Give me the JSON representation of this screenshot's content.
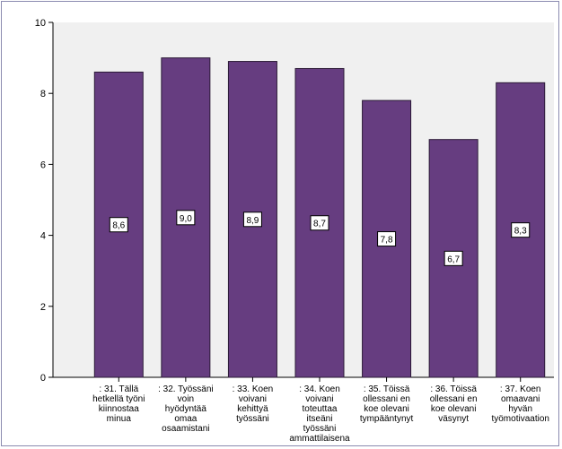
{
  "chart_data": {
    "type": "bar",
    "categories": [
      ": 31. Tällä hetkellä työni kiinnostaa minua",
      ": 32. Työssäni voin hyödyntää omaa osaamistani",
      ": 33. Koen voivani kehittyä työssäni",
      ": 34. Koen voivani toteuttaa itseäni työssäni ammattilaisena",
      ": 35. Töissä ollessani en koe olevani tympääntynyt",
      ": 36. Töissä ollessani en koe olevani väsynyt",
      ": 37. Koen omaavani hyvän työmotivaation"
    ],
    "category_lines": [
      [
        ": 31. Tällä",
        "hetkellä työni",
        "kiinnostaa",
        "minua"
      ],
      [
        ": 32. Työssäni",
        "voin",
        "hyödyntää",
        "omaa",
        "osaamistani"
      ],
      [
        ": 33. Koen",
        "voivani",
        "kehittyä",
        "työssäni"
      ],
      [
        ": 34. Koen",
        "voivani",
        "toteuttaa",
        "itseäni",
        "työssäni",
        "ammattilaisena"
      ],
      [
        ": 35. Töissä",
        "ollessani en",
        "koe olevani",
        "tympääntynyt"
      ],
      [
        ": 36. Töissä",
        "ollessani en",
        "koe olevani",
        "väsynyt"
      ],
      [
        ": 37. Koen",
        "omaavani",
        "hyvän",
        "työmotivaation"
      ]
    ],
    "values": [
      8.6,
      9.0,
      8.9,
      8.7,
      7.8,
      6.7,
      8.3
    ],
    "data_labels": [
      "8,6",
      "9,0",
      "8,9",
      "8,7",
      "7,8",
      "6,7",
      "8,3"
    ],
    "ylim": [
      0,
      10
    ],
    "yticks": [
      0,
      2,
      4,
      6,
      8,
      10
    ],
    "ytick_labels": [
      "0",
      "2",
      "4",
      "6",
      "8",
      "10"
    ],
    "title": "",
    "xlabel": "",
    "ylabel": "",
    "grid": false,
    "legend": "none",
    "colors": {
      "bar": "#663d80",
      "bar_stroke": "#2b1a36",
      "plot_bg": "#f0f0f0",
      "axis": "#000000",
      "frame": "#8b8bb0"
    }
  }
}
